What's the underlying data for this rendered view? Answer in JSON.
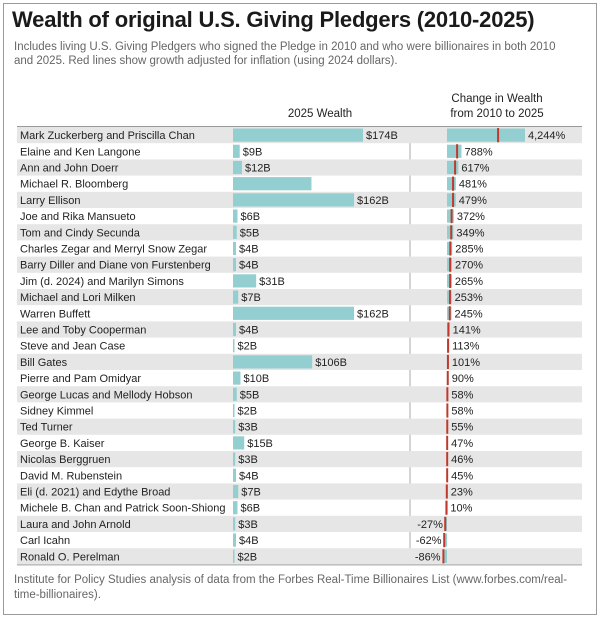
{
  "title": "Wealth of original U.S. Giving Pledgers (2010-2025)",
  "subtitle": "Includes living U.S. Giving Pledgers who signed the Pledge in 2010 and who were billionaires in both 2010 and 2025. Red lines show growth adjusted for inflation (using 2024 dollars).",
  "source": "Institute for Policy Studies analysis of data from the Forbes Real-Time Billionaires List (www.forbes.com/real-time-billionaires).",
  "colors": {
    "bar": "#93cfd0",
    "inflation_line": "#c0392b",
    "stripe": "#e6e6e6",
    "text": "#222222"
  },
  "chart_data": {
    "type": "table",
    "column_headers": {
      "wealth": "2025 Wealth",
      "change": "Change in Wealth from 2010 to 2025"
    },
    "rows": [
      {
        "name": "Mark Zuckerberg and Priscilla Chan",
        "wealth": 174,
        "wealth_label": "$174B",
        "change": 4244,
        "change_label": "4,244%",
        "inflation_adjusted_change": 2780
      },
      {
        "name": "Elaine and Ken Langone",
        "wealth": 9,
        "wealth_label": "$9B",
        "change": 788,
        "change_label": "788%",
        "inflation_adjusted_change": 550
      },
      {
        "name": "Ann and John Doerr",
        "wealth": 12,
        "wealth_label": "$12B",
        "change": 617,
        "change_label": "617%",
        "inflation_adjusted_change": 440
      },
      {
        "name": "Michael R. Bloomberg",
        "wealth": 105,
        "wealth_label": "",
        "change": 481,
        "change_label": "481%",
        "inflation_adjusted_change": 330
      },
      {
        "name": "Larry Ellison",
        "wealth": 162,
        "wealth_label": "$162B",
        "change": 479,
        "change_label": "479%",
        "inflation_adjusted_change": 330
      },
      {
        "name": "Joe and Rika Mansueto",
        "wealth": 6,
        "wealth_label": "$6B",
        "change": 372,
        "change_label": "372%",
        "inflation_adjusted_change": 250
      },
      {
        "name": "Tom and Cindy Secunda",
        "wealth": 5,
        "wealth_label": "$5B",
        "change": 349,
        "change_label": "349%",
        "inflation_adjusted_change": 230
      },
      {
        "name": "Charles Zegar and Merryl Snow Zegar",
        "wealth": 4,
        "wealth_label": "$4B",
        "change": 285,
        "change_label": "285%",
        "inflation_adjusted_change": 180
      },
      {
        "name": "Barry Diller and Diane von Furstenberg",
        "wealth": 4,
        "wealth_label": "$4B",
        "change": 270,
        "change_label": "270%",
        "inflation_adjusted_change": 170
      },
      {
        "name": "Jim (d. 2024) and Marilyn Simons",
        "wealth": 31,
        "wealth_label": "$31B",
        "change": 265,
        "change_label": "265%",
        "inflation_adjusted_change": 170
      },
      {
        "name": "Michael and Lori Milken",
        "wealth": 7,
        "wealth_label": "$7B",
        "change": 253,
        "change_label": "253%",
        "inflation_adjusted_change": 160
      },
      {
        "name": "Warren Buffett",
        "wealth": 162,
        "wealth_label": "$162B",
        "change": 245,
        "change_label": "245%",
        "inflation_adjusted_change": 150
      },
      {
        "name": "Lee and Toby Cooperman",
        "wealth": 4,
        "wealth_label": "$4B",
        "change": 141,
        "change_label": "141%",
        "inflation_adjusted_change": 80
      },
      {
        "name": "Steve and Jean Case",
        "wealth": 2,
        "wealth_label": "$2B",
        "change": 113,
        "change_label": "113%",
        "inflation_adjusted_change": 60
      },
      {
        "name": "Bill Gates",
        "wealth": 106,
        "wealth_label": "$106B",
        "change": 101,
        "change_label": "101%",
        "inflation_adjusted_change": 50
      },
      {
        "name": "Pierre and Pam Omidyar",
        "wealth": 10,
        "wealth_label": "$10B",
        "change": 90,
        "change_label": "90%",
        "inflation_adjusted_change": 40
      },
      {
        "name": "George Lucas and Mellody Hobson",
        "wealth": 5,
        "wealth_label": "$5B",
        "change": 58,
        "change_label": "58%",
        "inflation_adjusted_change": 20
      },
      {
        "name": "Sidney Kimmel",
        "wealth": 2,
        "wealth_label": "$2B",
        "change": 58,
        "change_label": "58%",
        "inflation_adjusted_change": 20
      },
      {
        "name": "Ted Turner",
        "wealth": 3,
        "wealth_label": "$3B",
        "change": 55,
        "change_label": "55%",
        "inflation_adjusted_change": 15
      },
      {
        "name": "George B. Kaiser",
        "wealth": 15,
        "wealth_label": "$15B",
        "change": 47,
        "change_label": "47%",
        "inflation_adjusted_change": 10
      },
      {
        "name": "Nicolas Berggruen",
        "wealth": 3,
        "wealth_label": "$3B",
        "change": 46,
        "change_label": "46%",
        "inflation_adjusted_change": 10
      },
      {
        "name": "David M. Rubenstein",
        "wealth": 4,
        "wealth_label": "$4B",
        "change": 45,
        "change_label": "45%",
        "inflation_adjusted_change": 10
      },
      {
        "name": "Eli (d. 2021) and Edythe Broad",
        "wealth": 7,
        "wealth_label": "$7B",
        "change": 23,
        "change_label": "23%",
        "inflation_adjusted_change": -5
      },
      {
        "name": "Michele B. Chan and Patrick Soon-Shiong",
        "wealth": 6,
        "wealth_label": "$6B",
        "change": 10,
        "change_label": "10%",
        "inflation_adjusted_change": -15
      },
      {
        "name": "Laura and John Arnold",
        "wealth": 3,
        "wealth_label": "$3B",
        "change": -27,
        "change_label": "-27%",
        "inflation_adjusted_change": -45
      },
      {
        "name": "Carl Icahn",
        "wealth": 4,
        "wealth_label": "$4B",
        "change": -62,
        "change_label": "-62%",
        "inflation_adjusted_change": -70
      },
      {
        "name": "Ronald O. Perelman",
        "wealth": 2,
        "wealth_label": "$2B",
        "change": -86,
        "change_label": "-86%",
        "inflation_adjusted_change": -90
      }
    ]
  }
}
